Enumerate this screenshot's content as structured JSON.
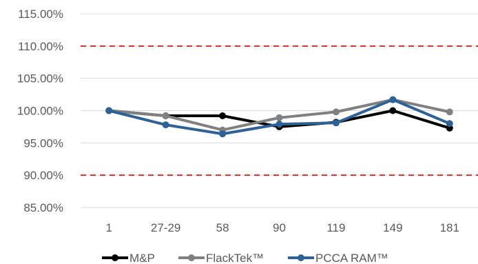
{
  "chart_data": {
    "type": "line",
    "title": "",
    "xlabel": "",
    "ylabel": "",
    "categories": [
      "1",
      "27-29",
      "58",
      "90",
      "119",
      "149",
      "181"
    ],
    "ylim": [
      85,
      115
    ],
    "yticks": [
      85,
      90,
      95,
      100,
      105,
      110,
      115
    ],
    "ytick_labels": [
      "85.00%",
      "90.00%",
      "95.00%",
      "100.00%",
      "105.00%",
      "110.00%",
      "115.00%"
    ],
    "grid": "horizontal",
    "legend_position": "bottom",
    "series": [
      {
        "name": "M&P",
        "color": "#000000",
        "values": [
          100.0,
          99.2,
          99.2,
          97.5,
          98.2,
          100.0,
          97.3
        ]
      },
      {
        "name": "FlackTek™",
        "color": "#808080",
        "values": [
          100.0,
          99.2,
          97.0,
          98.9,
          99.8,
          101.7,
          99.8
        ]
      },
      {
        "name": "PCCA RAM™",
        "color": "#2E6297",
        "values": [
          100.0,
          97.8,
          96.4,
          97.9,
          98.1,
          101.7,
          98.0
        ]
      }
    ],
    "reference_lines": [
      {
        "value": 110,
        "color": "#D92B2B",
        "style": "dashed"
      },
      {
        "value": 90,
        "color": "#D92B2B",
        "style": "dashed"
      }
    ]
  }
}
